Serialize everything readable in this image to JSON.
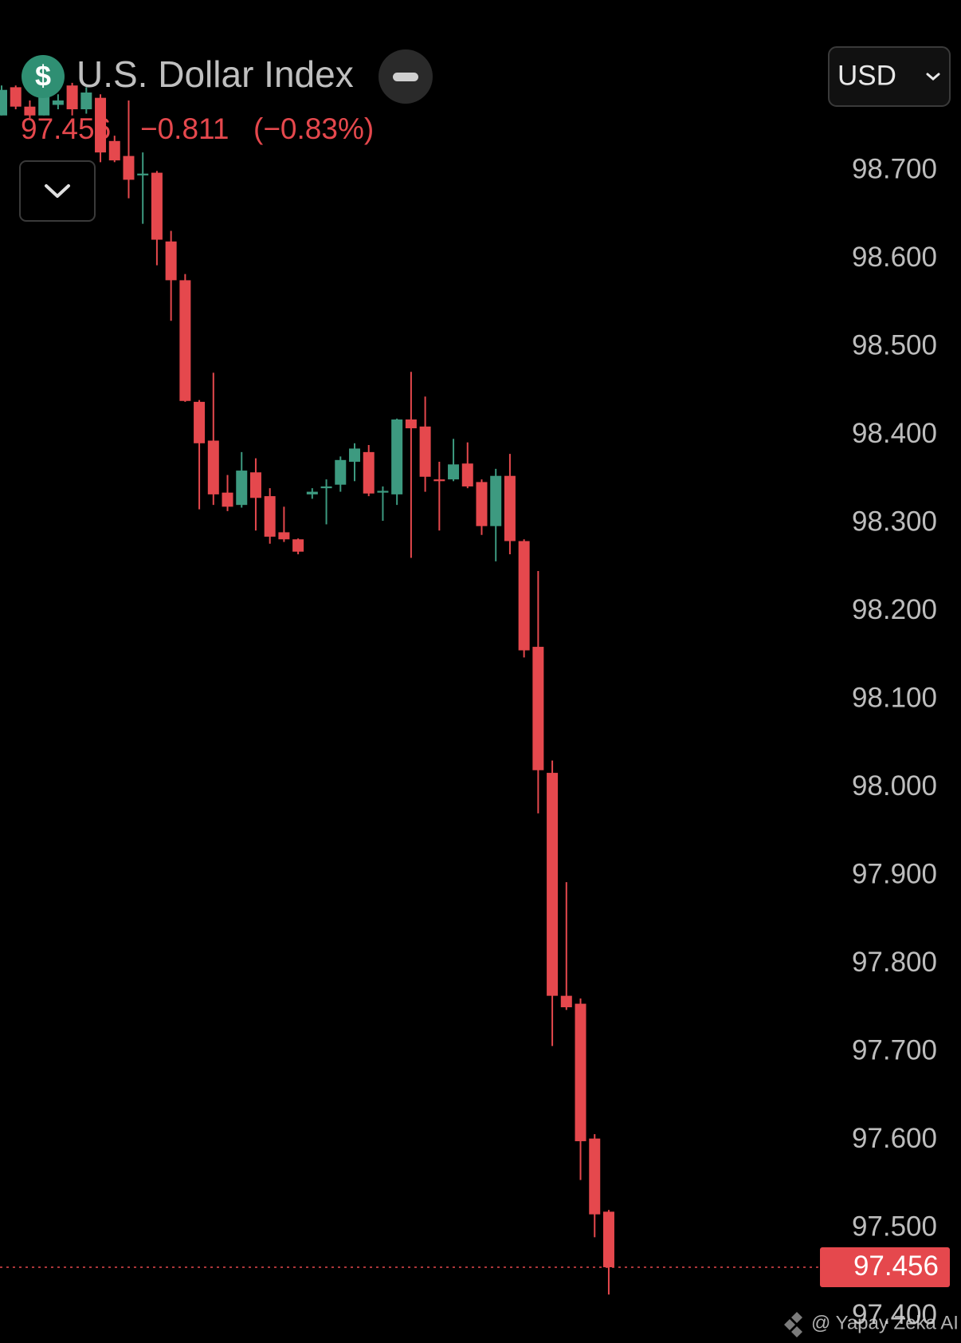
{
  "chart_data": {
    "type": "candlestick",
    "title": "U.S. Dollar Index",
    "currency_icon": "$",
    "last_price": 97.456,
    "change": "−0.811",
    "change_percent": "(−0.83%)",
    "currency": "USD",
    "watermark": "@ Yapay Zeka AI",
    "up_color": "#3d9a80",
    "down_color": "#e5484d",
    "open": [
      98.763,
      98.795,
      98.773,
      98.763,
      98.775,
      98.797,
      98.77,
      98.783,
      98.734,
      98.717,
      98.695,
      98.698,
      98.62,
      98.576,
      98.438,
      98.394,
      98.335,
      98.321,
      98.358,
      98.331,
      98.29,
      98.282,
      98.333,
      98.34,
      98.344,
      98.37,
      98.381,
      98.335,
      98.333,
      98.418,
      98.41,
      98.35,
      98.35,
      98.368,
      98.347,
      98.297,
      98.354,
      98.28,
      98.16,
      98.017,
      97.764,
      97.755,
      97.602,
      97.519
    ],
    "high": [
      98.797,
      98.797,
      98.78,
      98.795,
      98.787,
      98.8,
      98.795,
      98.787,
      98.74,
      98.78,
      98.721,
      98.7,
      98.632,
      98.583,
      98.44,
      98.471,
      98.355,
      98.381,
      98.374,
      98.34,
      98.319,
      98.283,
      98.34,
      98.35,
      98.376,
      98.391,
      98.389,
      98.342,
      98.419,
      98.472,
      98.444,
      98.37,
      98.396,
      98.392,
      98.35,
      98.362,
      98.379,
      98.282,
      98.246,
      98.031,
      97.893,
      97.761,
      97.607,
      97.521
    ],
    "low": [
      98.763,
      98.77,
      98.76,
      98.763,
      98.77,
      98.763,
      98.765,
      98.71,
      98.71,
      98.669,
      98.64,
      98.593,
      98.53,
      98.438,
      98.316,
      98.321,
      98.314,
      98.318,
      98.292,
      98.277,
      98.279,
      98.265,
      98.328,
      98.299,
      98.336,
      98.348,
      98.331,
      98.303,
      98.321,
      98.261,
      98.336,
      98.292,
      98.348,
      98.34,
      98.287,
      98.257,
      98.265,
      98.148,
      97.971,
      97.707,
      97.748,
      97.555,
      97.49,
      97.425
    ],
    "close": [
      98.792,
      98.773,
      98.763,
      98.787,
      98.78,
      98.77,
      98.789,
      98.721,
      98.712,
      98.69,
      98.697,
      98.622,
      98.576,
      98.439,
      98.391,
      98.333,
      98.319,
      98.36,
      98.329,
      98.285,
      98.282,
      98.268,
      98.336,
      98.342,
      98.372,
      98.385,
      98.334,
      98.337,
      98.418,
      98.408,
      98.353,
      98.348,
      98.367,
      98.342,
      98.297,
      98.354,
      98.28,
      98.156,
      98.02,
      97.764,
      97.751,
      97.599,
      97.516,
      97.456
    ],
    "ylim": [
      97.37,
      98.894
    ],
    "yticks": [
      {
        "value": 98.7,
        "label": "98.700"
      },
      {
        "value": 98.6,
        "label": "98.600"
      },
      {
        "value": 98.5,
        "label": "98.500"
      },
      {
        "value": 98.4,
        "label": "98.400"
      },
      {
        "value": 98.3,
        "label": "98.300"
      },
      {
        "value": 98.2,
        "label": "98.200"
      },
      {
        "value": 98.1,
        "label": "98.100"
      },
      {
        "value": 98.0,
        "label": "98.000"
      },
      {
        "value": 97.9,
        "label": "97.900"
      },
      {
        "value": 97.8,
        "label": "97.800"
      },
      {
        "value": 97.7,
        "label": "97.700"
      },
      {
        "value": 97.6,
        "label": "97.600"
      },
      {
        "value": 97.5,
        "label": "97.500"
      },
      {
        "value": 97.4,
        "label": "97.400"
      }
    ],
    "grid": false
  }
}
